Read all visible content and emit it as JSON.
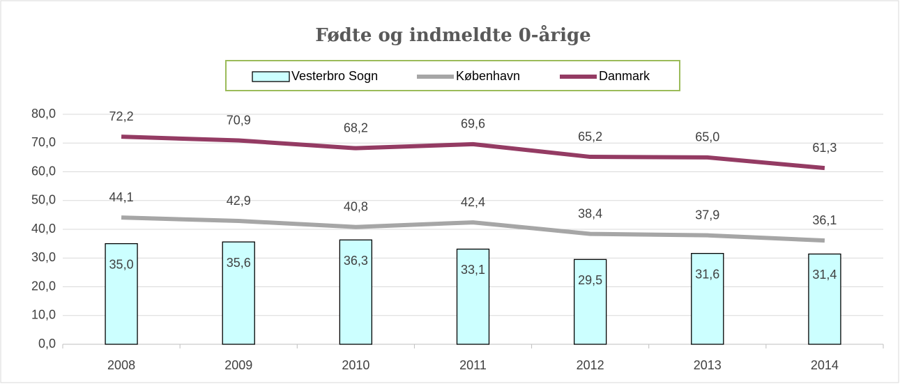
{
  "chart_data": {
    "type": "bar",
    "title": "Fødte og indmeldte 0-årige",
    "categories": [
      "2008",
      "2009",
      "2010",
      "2011",
      "2012",
      "2013",
      "2014"
    ],
    "series": [
      {
        "name": "Vesterbro Sogn",
        "type": "bar",
        "color": "#ccffff",
        "values": [
          35.0,
          35.6,
          36.3,
          33.1,
          29.5,
          31.6,
          31.4
        ],
        "value_labels": [
          "35,0",
          "35,6",
          "36,3",
          "33,1",
          "29,5",
          "31,6",
          "31,4"
        ]
      },
      {
        "name": "København",
        "type": "line",
        "color": "#a6a6a6",
        "values": [
          44.1,
          42.9,
          40.8,
          42.4,
          38.4,
          37.9,
          36.1
        ],
        "value_labels": [
          "44,1",
          "42,9",
          "40,8",
          "42,4",
          "38,4",
          "37,9",
          "36,1"
        ]
      },
      {
        "name": "Danmark",
        "type": "line",
        "color": "#943b63",
        "values": [
          72.2,
          70.9,
          68.2,
          69.6,
          65.2,
          65.0,
          61.3
        ],
        "value_labels": [
          "72,2",
          "70,9",
          "68,2",
          "69,6",
          "65,2",
          "65,0",
          "61,3"
        ]
      }
    ],
    "ylim": [
      0,
      80
    ],
    "yticks": [
      {
        "value": 0,
        "label": "0,0"
      },
      {
        "value": 10,
        "label": "10,0"
      },
      {
        "value": 20,
        "label": "20,0"
      },
      {
        "value": 30,
        "label": "30,0"
      },
      {
        "value": 40,
        "label": "40,0"
      },
      {
        "value": 50,
        "label": "50,0"
      },
      {
        "value": 60,
        "label": "60,0"
      },
      {
        "value": 70,
        "label": "70,0"
      },
      {
        "value": 80,
        "label": "80,0"
      }
    ],
    "grid": true,
    "legend": "top"
  }
}
